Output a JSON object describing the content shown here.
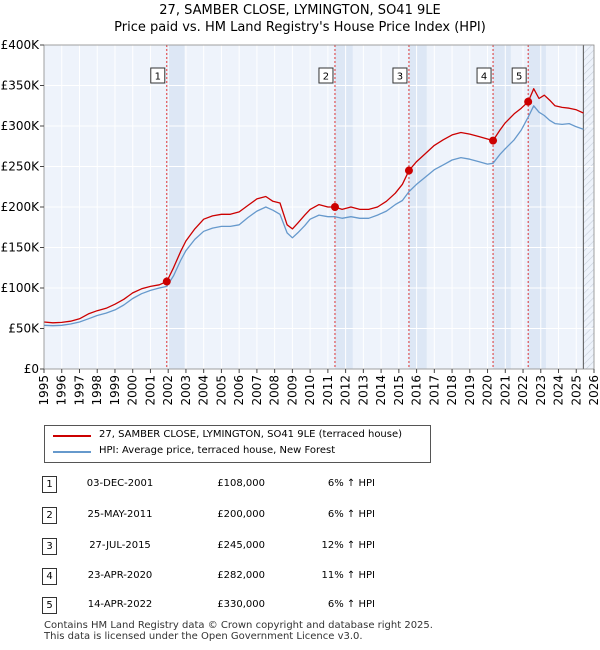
{
  "chart_data": {
    "type": "line",
    "title": "27, SAMBER CLOSE, LYMINGTON, SO41 9LE",
    "subtitle": "Price paid vs. HM Land Registry's House Price Index (HPI)",
    "xlim": [
      1995,
      2026
    ],
    "ylim": [
      0,
      400000
    ],
    "x_ticks": [
      1995,
      1996,
      1997,
      1998,
      1999,
      2000,
      2001,
      2002,
      2003,
      2004,
      2005,
      2006,
      2007,
      2008,
      2009,
      2010,
      2011,
      2012,
      2013,
      2014,
      2015,
      2016,
      2017,
      2018,
      2019,
      2020,
      2021,
      2022,
      2023,
      2024,
      2025,
      2026
    ],
    "y_ticks": [
      {
        "value": 0,
        "label": "£0"
      },
      {
        "value": 50000,
        "label": "£50K"
      },
      {
        "value": 100000,
        "label": "£100K"
      },
      {
        "value": 150000,
        "label": "£150K"
      },
      {
        "value": 200000,
        "label": "£200K"
      },
      {
        "value": 250000,
        "label": "£250K"
      },
      {
        "value": 300000,
        "label": "£300K"
      },
      {
        "value": 350000,
        "label": "£350K"
      },
      {
        "value": 400000,
        "label": "£400K"
      }
    ],
    "series": [
      {
        "name": "27, SAMBER CLOSE, LYMINGTON, SO41 9LE (terraced house)",
        "color": "#cc0000",
        "x": [
          1995.0,
          1995.5,
          1996.0,
          1996.5,
          1997.0,
          1997.5,
          1998.0,
          1998.5,
          1999.0,
          1999.5,
          2000.0,
          2000.5,
          2001.0,
          2001.5,
          2001.92,
          2002.3,
          2002.7,
          2003.0,
          2003.5,
          2004.0,
          2004.5,
          2005.0,
          2005.5,
          2006.0,
          2006.5,
          2007.0,
          2007.5,
          2007.9,
          2008.3,
          2008.7,
          2009.0,
          2009.3,
          2009.7,
          2010.0,
          2010.5,
          2011.0,
          2011.4,
          2011.8,
          2012.3,
          2012.8,
          2013.3,
          2013.8,
          2014.3,
          2014.8,
          2015.2,
          2015.57,
          2016.0,
          2016.5,
          2017.0,
          2017.5,
          2018.0,
          2018.5,
          2019.0,
          2019.5,
          2020.0,
          2020.31,
          2020.7,
          2021.0,
          2021.5,
          2021.9,
          2022.29,
          2022.6,
          2022.9,
          2023.2,
          2023.5,
          2023.8,
          2024.2,
          2024.6,
          2025.0,
          2025.4
        ],
        "values": [
          58000,
          57000,
          57500,
          59000,
          62000,
          68000,
          72000,
          75000,
          80000,
          86000,
          94000,
          99000,
          102000,
          104000,
          108000,
          125000,
          145000,
          158000,
          173000,
          185000,
          189000,
          191000,
          191000,
          194000,
          202000,
          210000,
          213000,
          207000,
          205000,
          178000,
          173000,
          180000,
          190000,
          197000,
          203000,
          200000,
          200000,
          197000,
          200000,
          197000,
          197000,
          200000,
          207000,
          217000,
          228000,
          245000,
          256000,
          266000,
          276000,
          283000,
          289000,
          292000,
          290000,
          287000,
          284000,
          282000,
          295000,
          304000,
          315000,
          322000,
          330000,
          346000,
          334000,
          338000,
          332000,
          325000,
          323000,
          322000,
          320000,
          316000
        ]
      },
      {
        "name": "HPI: Average price, terraced house, New Forest",
        "color": "#6699cc",
        "x": [
          1995.0,
          1995.5,
          1996.0,
          1996.5,
          1997.0,
          1997.5,
          1998.0,
          1998.5,
          1999.0,
          1999.5,
          2000.0,
          2000.5,
          2001.0,
          2001.5,
          2001.92,
          2002.3,
          2002.7,
          2003.0,
          2003.5,
          2004.0,
          2004.5,
          2005.0,
          2005.5,
          2006.0,
          2006.5,
          2007.0,
          2007.5,
          2007.9,
          2008.3,
          2008.7,
          2009.0,
          2009.3,
          2009.7,
          2010.0,
          2010.5,
          2011.0,
          2011.4,
          2011.8,
          2012.3,
          2012.8,
          2013.3,
          2013.8,
          2014.3,
          2014.8,
          2015.2,
          2015.57,
          2016.0,
          2016.5,
          2017.0,
          2017.5,
          2018.0,
          2018.5,
          2019.0,
          2019.5,
          2020.0,
          2020.31,
          2020.7,
          2021.0,
          2021.5,
          2021.9,
          2022.29,
          2022.6,
          2022.9,
          2023.2,
          2023.5,
          2023.8,
          2024.2,
          2024.6,
          2025.0,
          2025.4
        ],
        "values": [
          54000,
          53500,
          54000,
          55500,
          58000,
          62000,
          66000,
          69000,
          73000,
          79000,
          87000,
          93000,
          97000,
          100000,
          102000,
          115000,
          134000,
          146000,
          160000,
          170000,
          174000,
          176000,
          176000,
          178000,
          187000,
          195000,
          200000,
          196000,
          191000,
          168000,
          162000,
          168000,
          177000,
          185000,
          190000,
          188000,
          188000,
          186000,
          188000,
          186000,
          186000,
          190000,
          195000,
          203000,
          208000,
          219000,
          228000,
          237000,
          246000,
          252000,
          258000,
          261000,
          259000,
          256000,
          253000,
          254000,
          265000,
          272000,
          283000,
          295000,
          311000,
          325000,
          317000,
          313000,
          307000,
          303000,
          302000,
          303000,
          299000,
          296000
        ]
      }
    ],
    "sales": [
      {
        "num": "1",
        "x": 2001.92,
        "value": 108000
      },
      {
        "num": "2",
        "x": 2011.4,
        "value": 200000
      },
      {
        "num": "3",
        "x": 2015.57,
        "value": 245000
      },
      {
        "num": "4",
        "x": 2020.31,
        "value": 282000
      },
      {
        "num": "5",
        "x": 2022.29,
        "value": 330000
      }
    ],
    "shade_from": 2025.4
  },
  "legend": {
    "red_label": "27, SAMBER CLOSE, LYMINGTON, SO41 9LE (terraced house)",
    "blue_label": "HPI: Average price, terraced house, New Forest",
    "red_color": "#cc0000",
    "blue_color": "#6699cc"
  },
  "sales_table": [
    {
      "num": "1",
      "date": "03-DEC-2001",
      "price": "£108,000",
      "hpi": "6% ↑ HPI"
    },
    {
      "num": "2",
      "date": "25-MAY-2011",
      "price": "£200,000",
      "hpi": "6% ↑ HPI"
    },
    {
      "num": "3",
      "date": "27-JUL-2015",
      "price": "£245,000",
      "hpi": "12% ↑ HPI"
    },
    {
      "num": "4",
      "date": "23-APR-2020",
      "price": "£282,000",
      "hpi": "11% ↑ HPI"
    },
    {
      "num": "5",
      "date": "14-APR-2022",
      "price": "£330,000",
      "hpi": "6% ↑ HPI"
    }
  ],
  "footer": {
    "line1": "Contains HM Land Registry data © Crown copyright and database right 2025.",
    "line2": "This data is licensed under the Open Government Licence v3.0."
  }
}
